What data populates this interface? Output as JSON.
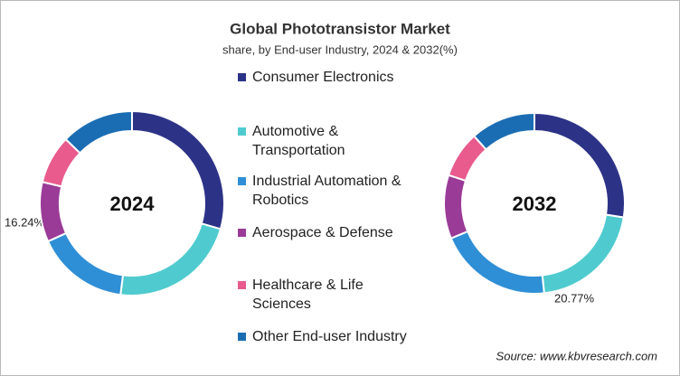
{
  "chart_data": {
    "type": "donut",
    "title": "Global Phototransistor  Market",
    "subtitle": "share, by End-user Industry, 2024 & 2032(%)",
    "categories": [
      "Consumer Electronics",
      "Automotive & Transportation",
      "Industrial Automation & Robotics",
      "Aerospace & Defense",
      "Healthcare & Life Sciences",
      "Other End-user Industry"
    ],
    "colors": [
      "#2c3387",
      "#4fcbcf",
      "#2f8fd6",
      "#9a3b97",
      "#e85b8c",
      "#1b6db3"
    ],
    "series": [
      {
        "name": "2024",
        "values": [
          29.5,
          22.5,
          16.24,
          10.5,
          8.5,
          12.76
        ],
        "value_labels": [
          null,
          null,
          "16.24%",
          null,
          null,
          null
        ]
      },
      {
        "name": "2032",
        "values": [
          27.5,
          20.77,
          20.4,
          11.4,
          8.3,
          11.63
        ],
        "value_labels": [
          null,
          "20.77%",
          null,
          null,
          null,
          null
        ]
      }
    ],
    "source": "Source: www.kbvresearch.com"
  }
}
